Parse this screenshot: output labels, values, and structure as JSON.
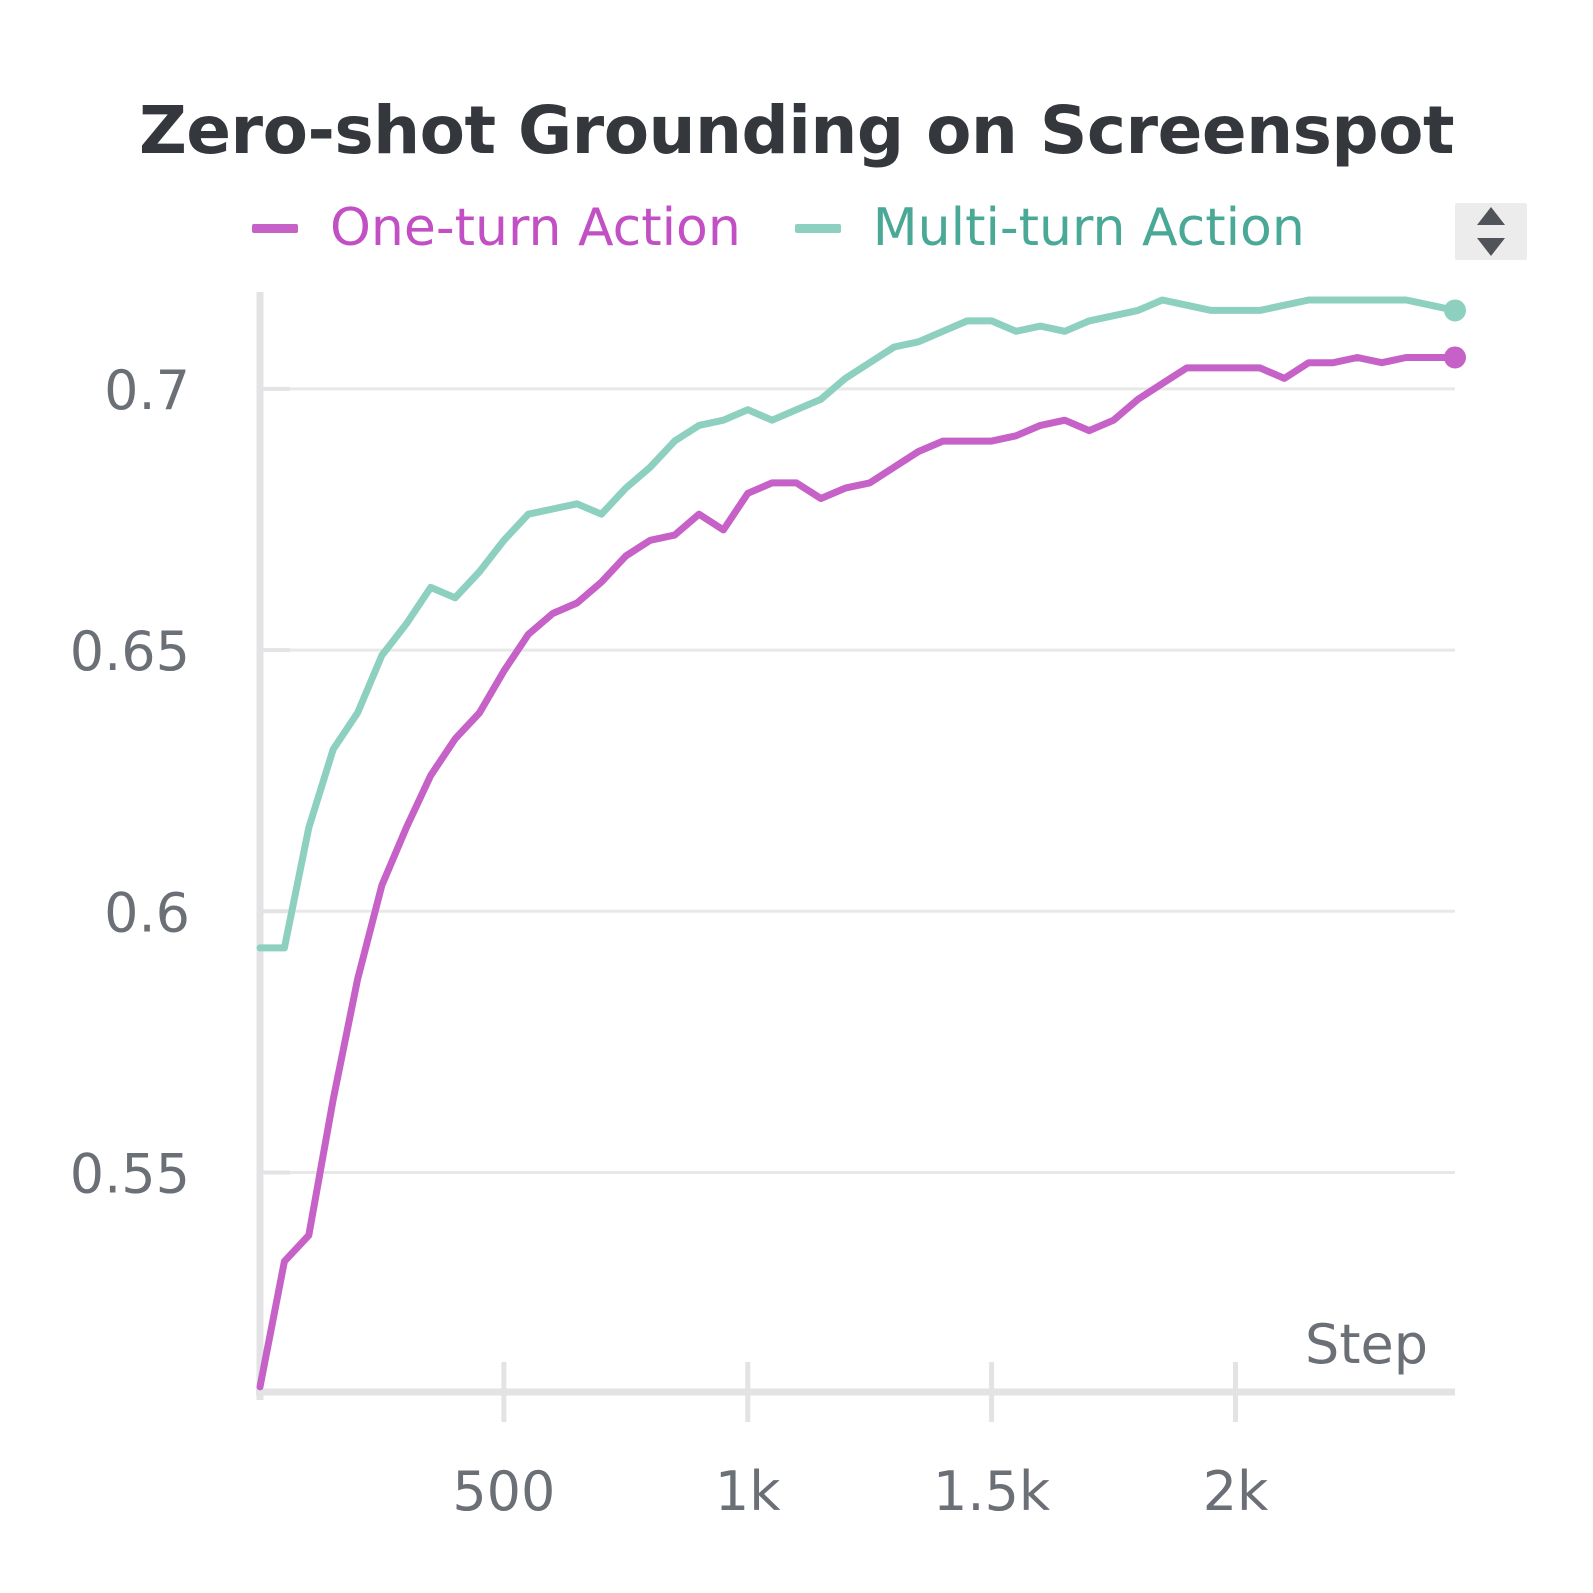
{
  "chart_data": {
    "type": "line",
    "title": "Zero-shot Grounding on Screenspot",
    "xlabel": "Step",
    "ylabel": "",
    "xlim": [
      0,
      2450
    ],
    "ylim": [
      0.508,
      0.717
    ],
    "grid": true,
    "legend_position": "top",
    "x_ticks": [
      500,
      1000,
      1500,
      2000
    ],
    "x_tick_labels": [
      "500",
      "1k",
      "1.5k",
      "2k"
    ],
    "y_ticks": [
      0.55,
      0.6,
      0.65,
      0.7
    ],
    "y_tick_labels": [
      "0.55",
      "0.6",
      "0.65",
      "0.7"
    ],
    "x": [
      0,
      50,
      100,
      150,
      200,
      250,
      300,
      350,
      400,
      450,
      500,
      550,
      600,
      650,
      700,
      750,
      800,
      850,
      900,
      950,
      1000,
      1050,
      1100,
      1150,
      1200,
      1250,
      1300,
      1350,
      1400,
      1450,
      1500,
      1550,
      1600,
      1650,
      1700,
      1750,
      1800,
      1850,
      1900,
      1950,
      2000,
      2050,
      2100,
      2150,
      2200,
      2250,
      2300,
      2350,
      2400,
      2450
    ],
    "series": [
      {
        "name": "One-turn Action",
        "color": "#c561c7",
        "text_color": "#c24fc4",
        "values": [
          0.509,
          0.533,
          0.538,
          0.564,
          0.587,
          0.605,
          0.616,
          0.626,
          0.633,
          0.638,
          0.646,
          0.653,
          0.657,
          0.659,
          0.663,
          0.668,
          0.671,
          0.672,
          0.676,
          0.673,
          0.68,
          0.682,
          0.682,
          0.679,
          0.681,
          0.682,
          0.685,
          0.688,
          0.69,
          0.69,
          0.69,
          0.691,
          0.693,
          0.694,
          0.692,
          0.694,
          0.698,
          0.701,
          0.704,
          0.704,
          0.704,
          0.704,
          0.702,
          0.705,
          0.705,
          0.706,
          0.705,
          0.706,
          0.706,
          0.706
        ]
      },
      {
        "name": "Multi-turn Action",
        "color": "#8dd0bf",
        "text_color": "#4aa896",
        "values": [
          0.593,
          0.593,
          0.616,
          0.631,
          0.638,
          0.649,
          0.655,
          0.662,
          0.66,
          0.665,
          0.671,
          0.676,
          0.677,
          0.678,
          0.676,
          0.681,
          0.685,
          0.69,
          0.693,
          0.694,
          0.696,
          0.694,
          0.696,
          0.698,
          0.702,
          0.705,
          0.708,
          0.709,
          0.711,
          0.713,
          0.713,
          0.711,
          0.712,
          0.711,
          0.713,
          0.714,
          0.715,
          0.717,
          0.716,
          0.715,
          0.715,
          0.715,
          0.716,
          0.717,
          0.717,
          0.717,
          0.717,
          0.717,
          0.716,
          0.715
        ]
      }
    ]
  },
  "controls": {
    "sort_toggle_icon": "sort-up-down-icon"
  }
}
